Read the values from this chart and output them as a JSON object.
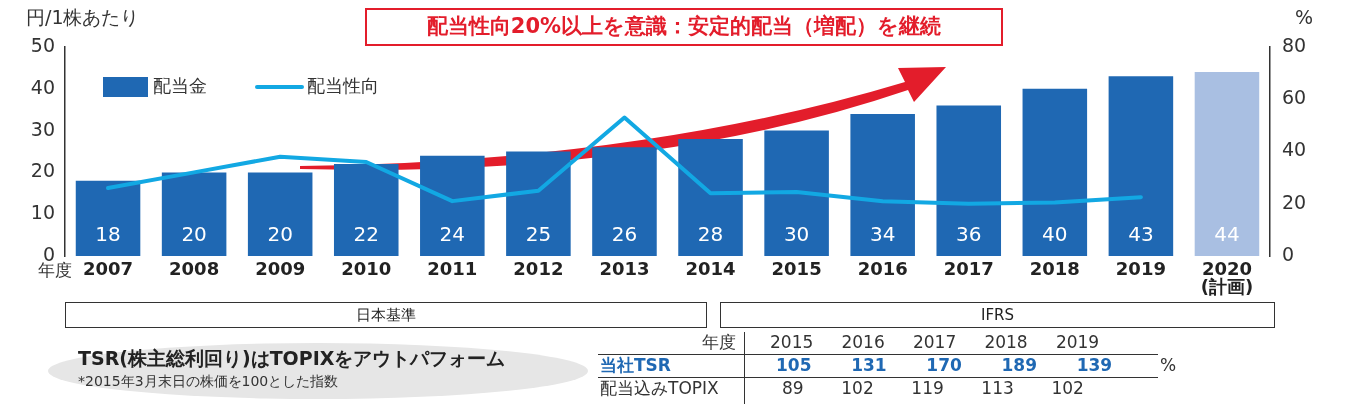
{
  "chart_data": [
    {
      "type": "bar",
      "title": "配当性向20%以上を意識：安定的配当（増配）を継続",
      "ylabel": "円/1株あたり",
      "y2label": "%",
      "categories": [
        "2007",
        "2008",
        "2009",
        "2010",
        "2011",
        "2012",
        "2013",
        "2014",
        "2015",
        "2016",
        "2017",
        "2018",
        "2019",
        "2020\n(計画)"
      ],
      "series": [
        {
          "name": "配当金",
          "type": "bar",
          "color": "#1f68b3",
          "colors": [
            "#1f68b3",
            "#1f68b3",
            "#1f68b3",
            "#1f68b3",
            "#1f68b3",
            "#1f68b3",
            "#1f68b3",
            "#1f68b3",
            "#1f68b3",
            "#1f68b3",
            "#1f68b3",
            "#1f68b3",
            "#1f68b3",
            "#a9bfe2"
          ],
          "values": [
            18,
            20,
            20,
            22,
            24,
            25,
            26,
            28,
            30,
            34,
            36,
            40,
            43,
            44
          ]
        },
        {
          "name": "配当性向",
          "type": "line",
          "axis": "y2",
          "color": "#12a8e3",
          "values": [
            26,
            32,
            38,
            36,
            21,
            25,
            53,
            24,
            24.5,
            21,
            20,
            20.5,
            22.5,
            null
          ],
          "value_labels": [
            null,
            null,
            null,
            null,
            null,
            null,
            null,
            null,
            null,
            null,
            null,
            null,
            null,
            null
          ]
        }
      ],
      "ylim": [
        0,
        50
      ],
      "yticks": [
        0,
        10,
        20,
        30,
        40,
        50
      ],
      "y2lim": [
        0,
        80
      ],
      "y2ticks": [
        0,
        20,
        40,
        60,
        80
      ],
      "data_labels": true,
      "legend": "top left",
      "grid": false,
      "marker": "none",
      "annotations": [
        "年度",
        "日本基準",
        "IFRS"
      ]
    },
    {
      "type": "other",
      "title": "TSR(株主総利回り)はTOPIXをアウトパフォーム",
      "subtitle": "*2015年3月末日の株価を100とした指数",
      "annotations": [
        "年度",
        "2015   2016   2017   2018   2019",
        "当社TSR",
        "105    131    170    189    139",
        "%",
        "配当込みTOPIX",
        "89    102    119    113    102"
      ]
    }
  ]
}
